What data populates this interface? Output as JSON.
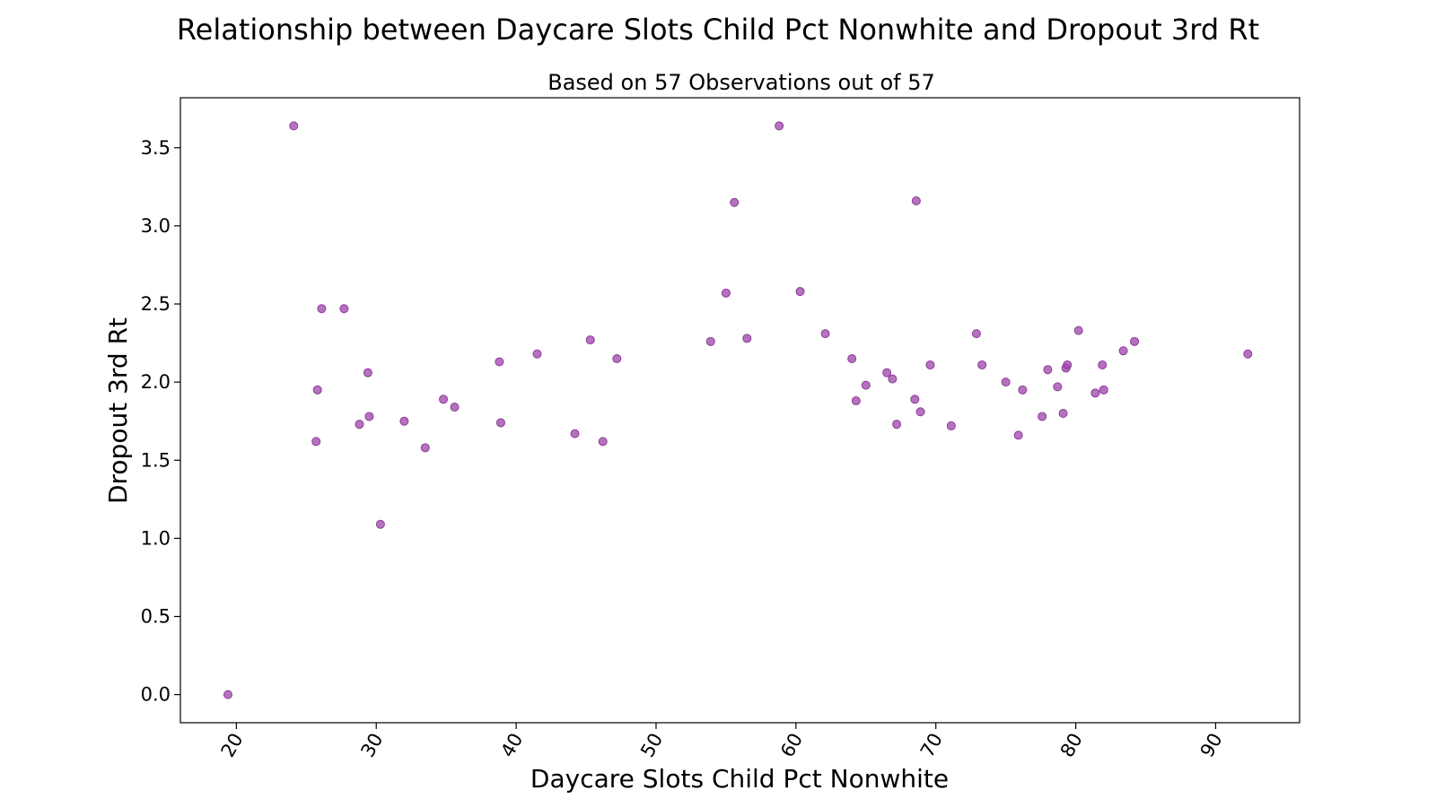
{
  "chart_data": {
    "type": "scatter",
    "title": "Relationship between Daycare Slots Child Pct Nonwhite and Dropout 3rd Rt",
    "subtitle": "Based on 57 Observations out of 57",
    "xlabel": "Daycare Slots Child Pct Nonwhite",
    "ylabel": "Dropout 3rd Rt",
    "xlim": [
      16,
      96
    ],
    "ylim": [
      -0.18,
      3.82
    ],
    "xticks": [
      20,
      30,
      40,
      50,
      60,
      70,
      80,
      90
    ],
    "yticks": [
      0.0,
      0.5,
      1.0,
      1.5,
      2.0,
      2.5,
      3.0,
      3.5
    ],
    "xtick_labels": [
      "20",
      "30",
      "40",
      "50",
      "60",
      "70",
      "80",
      "90"
    ],
    "ytick_labels": [
      "0.0",
      "0.5",
      "1.0",
      "1.5",
      "2.0",
      "2.5",
      "3.0",
      "3.5"
    ],
    "grid": false,
    "point_color": "#a04aac",
    "points": [
      [
        19.4,
        0.0
      ],
      [
        24.1,
        3.64
      ],
      [
        25.7,
        1.62
      ],
      [
        25.8,
        1.95
      ],
      [
        26.1,
        2.47
      ],
      [
        27.7,
        2.47
      ],
      [
        28.8,
        1.73
      ],
      [
        29.4,
        2.06
      ],
      [
        29.5,
        1.78
      ],
      [
        30.3,
        1.09
      ],
      [
        32.0,
        1.75
      ],
      [
        33.5,
        1.58
      ],
      [
        34.8,
        1.89
      ],
      [
        35.6,
        1.84
      ],
      [
        38.8,
        2.13
      ],
      [
        38.9,
        1.74
      ],
      [
        41.5,
        2.18
      ],
      [
        44.2,
        1.67
      ],
      [
        45.3,
        2.27
      ],
      [
        46.2,
        1.62
      ],
      [
        47.2,
        2.15
      ],
      [
        53.9,
        2.26
      ],
      [
        55.0,
        2.57
      ],
      [
        55.6,
        3.15
      ],
      [
        56.5,
        2.28
      ],
      [
        58.8,
        3.64
      ],
      [
        60.3,
        2.58
      ],
      [
        62.1,
        2.31
      ],
      [
        64.0,
        2.15
      ],
      [
        64.3,
        1.88
      ],
      [
        65.0,
        1.98
      ],
      [
        66.5,
        2.06
      ],
      [
        66.9,
        2.02
      ],
      [
        67.2,
        1.73
      ],
      [
        68.5,
        1.89
      ],
      [
        68.6,
        3.16
      ],
      [
        68.9,
        1.81
      ],
      [
        69.6,
        2.11
      ],
      [
        71.1,
        1.72
      ],
      [
        72.9,
        2.31
      ],
      [
        73.3,
        2.11
      ],
      [
        75.0,
        2.0
      ],
      [
        75.9,
        1.66
      ],
      [
        76.2,
        1.95
      ],
      [
        77.6,
        1.78
      ],
      [
        78.0,
        2.08
      ],
      [
        78.7,
        1.97
      ],
      [
        79.1,
        1.8
      ],
      [
        79.3,
        2.09
      ],
      [
        79.4,
        2.11
      ],
      [
        80.2,
        2.33
      ],
      [
        81.4,
        1.93
      ],
      [
        81.9,
        2.11
      ],
      [
        82.0,
        1.95
      ],
      [
        83.4,
        2.2
      ],
      [
        84.2,
        2.26
      ],
      [
        92.3,
        2.18
      ]
    ]
  }
}
